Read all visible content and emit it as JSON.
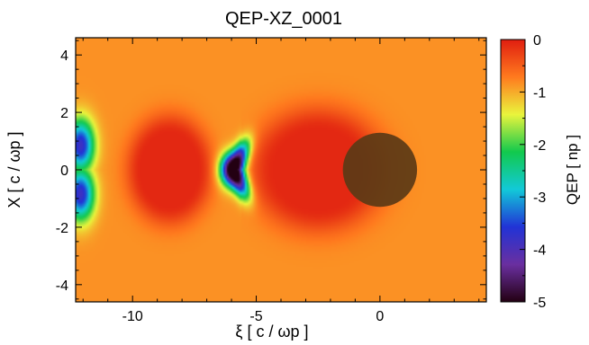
{
  "chart_data": {
    "type": "heatmap",
    "title": "QEP-XZ_0001",
    "xlabel": "ξ [ c / ωp ]",
    "ylabel": "X [ c / ωp ]",
    "colorbar_label": "QEP [ np ]",
    "xlim": [
      -12.3,
      4.3
    ],
    "ylim": [
      -4.6,
      4.6
    ],
    "clim": [
      -5,
      0
    ],
    "x_ticks": [
      -10,
      -5,
      0
    ],
    "y_ticks": [
      -4,
      -2,
      0,
      2,
      4
    ],
    "colorbar_ticks": [
      0,
      -1,
      -2,
      -3,
      -4,
      -5
    ],
    "colormap": [
      "#230012",
      "#6a2fa0",
      "#2133d6",
      "#12c9d8",
      "#12c94d",
      "#eaf43c",
      "#ff7a1e",
      "#e01e10"
    ],
    "background_value": -0.85,
    "features": [
      {
        "name": "first bubble",
        "center_xi": -8.5,
        "center_x": 0,
        "peak": -0.08
      },
      {
        "name": "second bubble",
        "center_xi": -2.5,
        "center_x": 0,
        "peak": -0.08
      },
      {
        "name": "minimum",
        "xi": -6.0,
        "x": 0,
        "value": -4.9
      },
      {
        "name": "driver disc",
        "center_xi": 0,
        "center_x": 0,
        "radius": 1.5,
        "color": "#5c3a16"
      }
    ]
  }
}
